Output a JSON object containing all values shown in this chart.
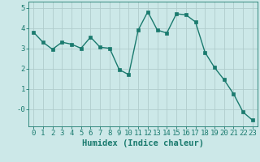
{
  "x": [
    0,
    1,
    2,
    3,
    4,
    5,
    6,
    7,
    8,
    9,
    10,
    11,
    12,
    13,
    14,
    15,
    16,
    17,
    18,
    19,
    20,
    21,
    22,
    23
  ],
  "y": [
    3.8,
    3.3,
    2.95,
    3.3,
    3.2,
    3.0,
    3.55,
    3.05,
    3.0,
    1.95,
    1.7,
    3.9,
    4.8,
    3.9,
    3.75,
    4.7,
    4.65,
    4.3,
    2.8,
    2.05,
    1.45,
    0.75,
    -0.15,
    -0.55
  ],
  "line_color": "#1a7a6e",
  "marker_color": "#1a7a6e",
  "bg_color": "#cce8e8",
  "grid_color": "#b0cccc",
  "xlabel": "Humidex (Indice chaleur)",
  "xlim": [
    -0.5,
    23.5
  ],
  "ylim": [
    -0.85,
    5.3
  ],
  "yticks": [
    0,
    1,
    2,
    3,
    4,
    5
  ],
  "ytick_labels": [
    "-0",
    "1",
    "2",
    "3",
    "4",
    "5"
  ],
  "xticks": [
    0,
    1,
    2,
    3,
    4,
    5,
    6,
    7,
    8,
    9,
    10,
    11,
    12,
    13,
    14,
    15,
    16,
    17,
    18,
    19,
    20,
    21,
    22,
    23
  ],
  "marker_size": 2.5,
  "line_width": 1.0,
  "xlabel_fontsize": 7.5,
  "tick_fontsize": 6.5
}
